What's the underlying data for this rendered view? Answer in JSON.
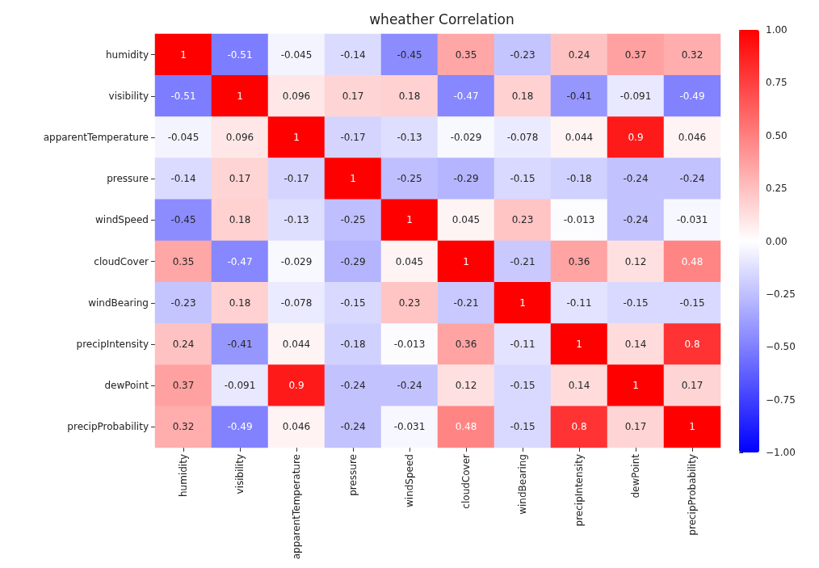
{
  "chart_data": {
    "type": "heatmap",
    "title": "wheather Correlation",
    "categories": [
      "humidity",
      "visibility",
      "apparentTemperature",
      "pressure",
      "windSpeed",
      "cloudCover",
      "windBearing",
      "precipIntensity",
      "dewPoint",
      "precipProbability"
    ],
    "y_categories": [
      "humidity",
      "visibility",
      "apparentTemperature",
      "pressure",
      "windSpeed",
      "cloudCover",
      "windBearing",
      "precipIntensity",
      "dewPoint",
      "precipProbability"
    ],
    "cells": [
      [
        1,
        -0.51,
        -0.045,
        -0.14,
        -0.45,
        0.35,
        -0.23,
        0.24,
        0.37,
        0.32
      ],
      [
        -0.51,
        1,
        0.096,
        0.17,
        0.18,
        -0.47,
        0.18,
        -0.41,
        -0.091,
        -0.49
      ],
      [
        -0.045,
        0.096,
        1,
        -0.17,
        -0.13,
        -0.029,
        -0.078,
        0.044,
        0.9,
        0.046
      ],
      [
        -0.14,
        0.17,
        -0.17,
        1,
        -0.25,
        -0.29,
        -0.15,
        -0.18,
        -0.24,
        -0.24
      ],
      [
        -0.45,
        0.18,
        -0.13,
        -0.25,
        1,
        0.045,
        0.23,
        -0.013,
        -0.24,
        -0.031
      ],
      [
        0.35,
        -0.47,
        -0.029,
        -0.29,
        0.045,
        1,
        -0.21,
        0.36,
        0.12,
        0.48
      ],
      [
        -0.23,
        0.18,
        -0.078,
        -0.15,
        0.23,
        -0.21,
        1,
        -0.11,
        -0.15,
        -0.15
      ],
      [
        0.24,
        -0.41,
        0.044,
        -0.18,
        -0.013,
        0.36,
        -0.11,
        1,
        0.14,
        0.8
      ],
      [
        0.37,
        -0.091,
        0.9,
        -0.24,
        -0.24,
        0.12,
        -0.15,
        0.14,
        1,
        0.17
      ],
      [
        0.32,
        -0.49,
        0.046,
        -0.24,
        -0.031,
        0.48,
        -0.15,
        0.8,
        0.17,
        1
      ]
    ],
    "data_labels": true,
    "clim": [
      -1,
      1
    ],
    "cticks": [
      {
        "value": 1,
        "label": "1.00"
      },
      {
        "value": 0.75,
        "label": "0.75"
      },
      {
        "value": 0.5,
        "label": "0.50"
      },
      {
        "value": 0.25,
        "label": "0.25"
      },
      {
        "value": 0,
        "label": "0.00"
      },
      {
        "value": -0.25,
        "label": "−0.25"
      },
      {
        "value": -0.5,
        "label": "−0.50"
      },
      {
        "value": -0.75,
        "label": "−0.75"
      },
      {
        "value": -1,
        "label": "−1.00"
      }
    ]
  }
}
